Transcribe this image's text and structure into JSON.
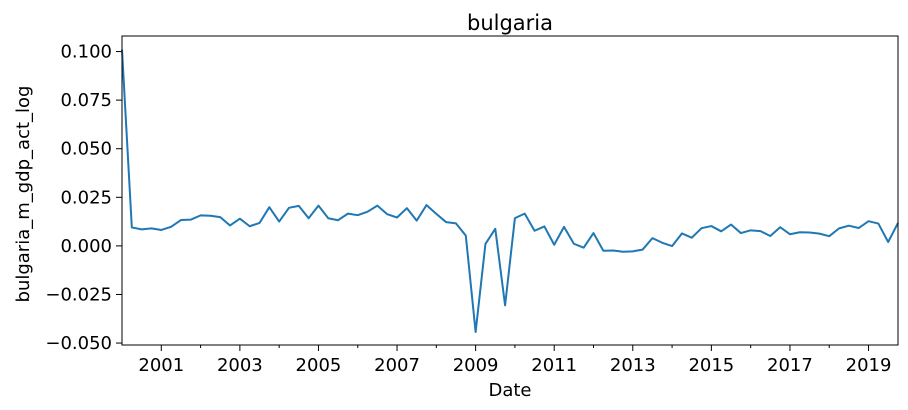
{
  "chart_data": {
    "type": "line",
    "title": "bulgaria",
    "xlabel": "Date",
    "ylabel": "bulgaria_m_gdp_act_log",
    "x_tick_labels": [
      "2001",
      "2003",
      "2005",
      "2007",
      "2009",
      "2011",
      "2013",
      "2015",
      "2017",
      "2019"
    ],
    "y_tick_labels": [
      "−0.050",
      "−0.025",
      "0.000",
      "0.025",
      "0.050",
      "0.075",
      "0.100"
    ],
    "xlim": [
      "2000-01",
      "2019-10"
    ],
    "ylim": [
      -0.051,
      0.108
    ],
    "grid": false,
    "line_color": "#1f77b4",
    "series": [
      {
        "x": [
          "2000-01",
          "2000-04",
          "2000-07",
          "2000-10",
          "2001-01",
          "2001-04",
          "2001-07",
          "2001-10",
          "2002-01",
          "2002-04",
          "2002-07",
          "2002-10",
          "2003-01",
          "2003-04",
          "2003-07",
          "2003-10",
          "2004-01",
          "2004-04",
          "2004-07",
          "2004-10",
          "2005-01",
          "2005-04",
          "2005-07",
          "2005-10",
          "2006-01",
          "2006-04",
          "2006-07",
          "2006-10",
          "2007-01",
          "2007-04",
          "2007-07",
          "2007-10",
          "2008-01",
          "2008-04",
          "2008-07",
          "2008-10",
          "2009-01",
          "2009-04",
          "2009-07",
          "2009-10",
          "2010-01",
          "2010-04",
          "2010-07",
          "2010-10",
          "2011-01",
          "2011-04",
          "2011-07",
          "2011-10",
          "2012-01",
          "2012-04",
          "2012-07",
          "2012-10",
          "2013-01",
          "2013-04",
          "2013-07",
          "2013-10",
          "2014-01",
          "2014-04",
          "2014-07",
          "2014-10",
          "2015-01",
          "2015-04",
          "2015-07",
          "2015-10",
          "2016-01",
          "2016-04",
          "2016-07",
          "2016-10",
          "2017-01",
          "2017-04",
          "2017-07",
          "2017-10",
          "2018-01",
          "2018-04",
          "2018-07",
          "2018-10",
          "2019-01",
          "2019-04",
          "2019-07",
          "2019-10"
        ],
        "y": [
          0.101,
          0.0095,
          0.0085,
          0.009,
          0.0082,
          0.0098,
          0.0133,
          0.0135,
          0.0157,
          0.0155,
          0.0148,
          0.0105,
          0.014,
          0.0101,
          0.0118,
          0.0199,
          0.0125,
          0.0196,
          0.0206,
          0.0142,
          0.0207,
          0.0142,
          0.0132,
          0.0166,
          0.0158,
          0.0176,
          0.0207,
          0.0163,
          0.0146,
          0.0194,
          0.013,
          0.021,
          0.0165,
          0.0122,
          0.0116,
          0.0053,
          -0.0443,
          0.001,
          0.0088,
          -0.0306,
          0.0143,
          0.0166,
          0.0078,
          0.01,
          0.0006,
          0.0098,
          0.0011,
          -0.0009,
          0.0066,
          -0.0025,
          -0.0024,
          -0.003,
          -0.0028,
          -0.0019,
          0.004,
          0.0016,
          -0.0001,
          0.0064,
          0.0042,
          0.0091,
          0.0102,
          0.0075,
          0.011,
          0.0066,
          0.008,
          0.0076,
          0.0051,
          0.0096,
          0.006,
          0.007,
          0.0069,
          0.0063,
          0.005,
          0.009,
          0.0104,
          0.0092,
          0.0127,
          0.0115,
          0.002,
          0.0118
        ]
      }
    ]
  }
}
